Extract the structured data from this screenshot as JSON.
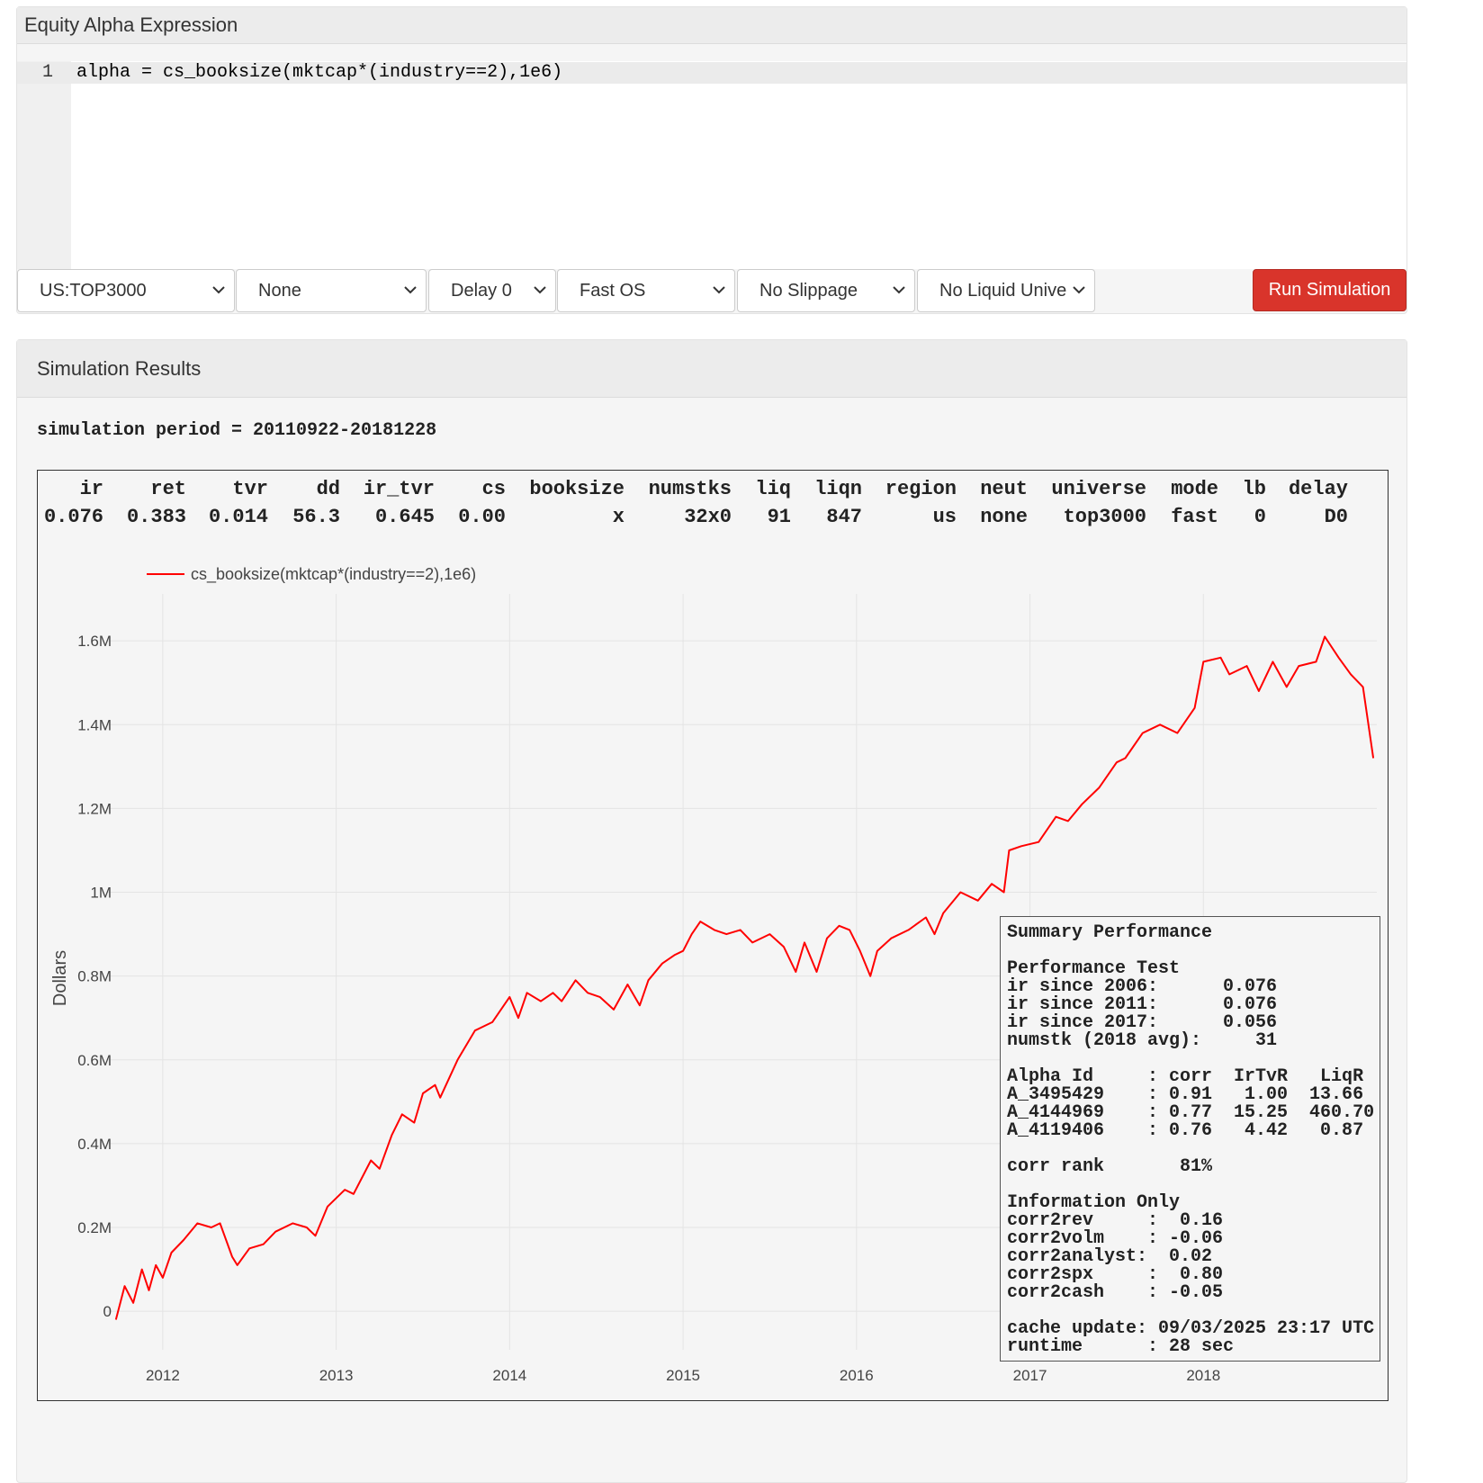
{
  "header": {
    "title": "Equity Alpha Expression"
  },
  "editor": {
    "line_number": "1",
    "code": "alpha = cs_booksize(mktcap*(industry==2),1e6)"
  },
  "controls": {
    "selects": [
      "US:TOP3000",
      "None",
      "Delay 0",
      "Fast OS",
      "No Slippage",
      "No Liquid Unive"
    ],
    "button": "Run Simulation"
  },
  "results": {
    "title": "Simulation Results",
    "period": "simulation period = 20110922-20181228",
    "stats": {
      "headers": [
        "ir",
        "ret",
        "tvr",
        "dd",
        "ir_tvr",
        "cs",
        "booksize",
        "numstks",
        "liq",
        "liqn",
        "region",
        "neut",
        "universe",
        "mode",
        "lb",
        "delay"
      ],
      "values": [
        "0.076",
        "0.383",
        "0.014",
        "56.3",
        "0.645",
        "0.00",
        "x",
        "32x0",
        "91",
        "847",
        "us",
        "none",
        "top3000",
        "fast",
        "0",
        "D0"
      ]
    },
    "summary": {
      "title": "Summary Performance",
      "sections": [
        [
          "Performance Test",
          "ir since 2006:      0.076",
          "ir since 2011:      0.076",
          "ir since 2017:      0.056",
          "numstk (2018 avg):     31"
        ],
        [
          "Alpha Id     : corr  IrTvR   LiqR",
          "A_3495429    : 0.91   1.00  13.66",
          "A_4144969    : 0.77  15.25  460.70",
          "A_4119406    : 0.76   4.42   0.87"
        ],
        [
          "corr rank       81%"
        ],
        [
          "Information Only",
          "corr2rev     :  0.16",
          "corr2volm    : -0.06",
          "corr2analyst:  0.02",
          "corr2spx     :  0.80",
          "corr2cash    : -0.05"
        ],
        [
          "cache update: 09/03/2025 23:17 UTC",
          "runtime      : 28 sec"
        ]
      ]
    }
  },
  "chart_data": {
    "type": "line",
    "ylabel": "Dollars",
    "grid": true,
    "xlim": [
      2011.68,
      2019.0
    ],
    "xticks": [
      2012,
      2013,
      2014,
      2015,
      2016,
      2017,
      2018
    ],
    "ylim": [
      -92000,
      1712000
    ],
    "yticks": [
      0,
      {
        "value": 200000,
        "label": "0.2M"
      },
      {
        "value": 400000,
        "label": "0.4M"
      },
      {
        "value": 600000,
        "label": "0.6M"
      },
      {
        "value": 800000,
        "label": "0.8M"
      },
      {
        "value": 1000000,
        "label": "1M"
      },
      {
        "value": 1200000,
        "label": "1.2M"
      },
      {
        "value": 1400000,
        "label": "1.4M"
      },
      {
        "value": 1600000,
        "label": "1.6M"
      }
    ],
    "x": [
      2011.73,
      2011.78,
      2011.83,
      2011.88,
      2011.92,
      2011.96,
      2012.0,
      2012.05,
      2012.12,
      2012.2,
      2012.28,
      2012.33,
      2012.4,
      2012.43,
      2012.5,
      2012.58,
      2012.65,
      2012.75,
      2012.83,
      2012.88,
      2012.95,
      2013.05,
      2013.1,
      2013.2,
      2013.25,
      2013.32,
      2013.38,
      2013.45,
      2013.5,
      2013.57,
      2013.6,
      2013.7,
      2013.8,
      2013.9,
      2014.0,
      2014.05,
      2014.1,
      2014.18,
      2014.25,
      2014.3,
      2014.38,
      2014.45,
      2014.52,
      2014.6,
      2014.68,
      2014.75,
      2014.8,
      2014.88,
      2014.95,
      2015.0,
      2015.05,
      2015.1,
      2015.18,
      2015.25,
      2015.33,
      2015.4,
      2015.5,
      2015.58,
      2015.65,
      2015.7,
      2015.77,
      2015.83,
      2015.9,
      2015.96,
      2016.02,
      2016.08,
      2016.12,
      2016.2,
      2016.3,
      2016.4,
      2016.45,
      2016.5,
      2016.6,
      2016.7,
      2016.78,
      2016.85,
      2016.88,
      2016.95,
      2017.05,
      2017.15,
      2017.22,
      2017.3,
      2017.4,
      2017.5,
      2017.55,
      2017.65,
      2017.75,
      2017.85,
      2017.95,
      2018.0,
      2018.1,
      2018.15,
      2018.25,
      2018.32,
      2018.4,
      2018.48,
      2018.55,
      2018.65,
      2018.7,
      2018.78,
      2018.85,
      2018.92,
      2018.98
    ],
    "series": [
      {
        "name": "cs_booksize(mktcap*(industry==2),1e6)",
        "color": "#ff0000",
        "values": [
          -20000,
          60000,
          20000,
          100000,
          50000,
          110000,
          80000,
          140000,
          170000,
          210000,
          200000,
          210000,
          130000,
          110000,
          150000,
          160000,
          190000,
          210000,
          200000,
          180000,
          250000,
          290000,
          280000,
          360000,
          340000,
          420000,
          470000,
          450000,
          520000,
          540000,
          510000,
          600000,
          670000,
          690000,
          750000,
          700000,
          760000,
          740000,
          760000,
          740000,
          790000,
          760000,
          750000,
          720000,
          780000,
          730000,
          790000,
          830000,
          850000,
          860000,
          900000,
          930000,
          910000,
          900000,
          910000,
          880000,
          900000,
          870000,
          810000,
          880000,
          810000,
          890000,
          920000,
          910000,
          860000,
          800000,
          860000,
          890000,
          910000,
          940000,
          900000,
          950000,
          1000000,
          980000,
          1020000,
          1000000,
          1100000,
          1110000,
          1120000,
          1180000,
          1170000,
          1210000,
          1250000,
          1310000,
          1320000,
          1380000,
          1400000,
          1380000,
          1440000,
          1550000,
          1560000,
          1520000,
          1540000,
          1480000,
          1550000,
          1490000,
          1540000,
          1550000,
          1610000,
          1560000,
          1520000,
          1490000,
          1320000
        ]
      }
    ]
  }
}
